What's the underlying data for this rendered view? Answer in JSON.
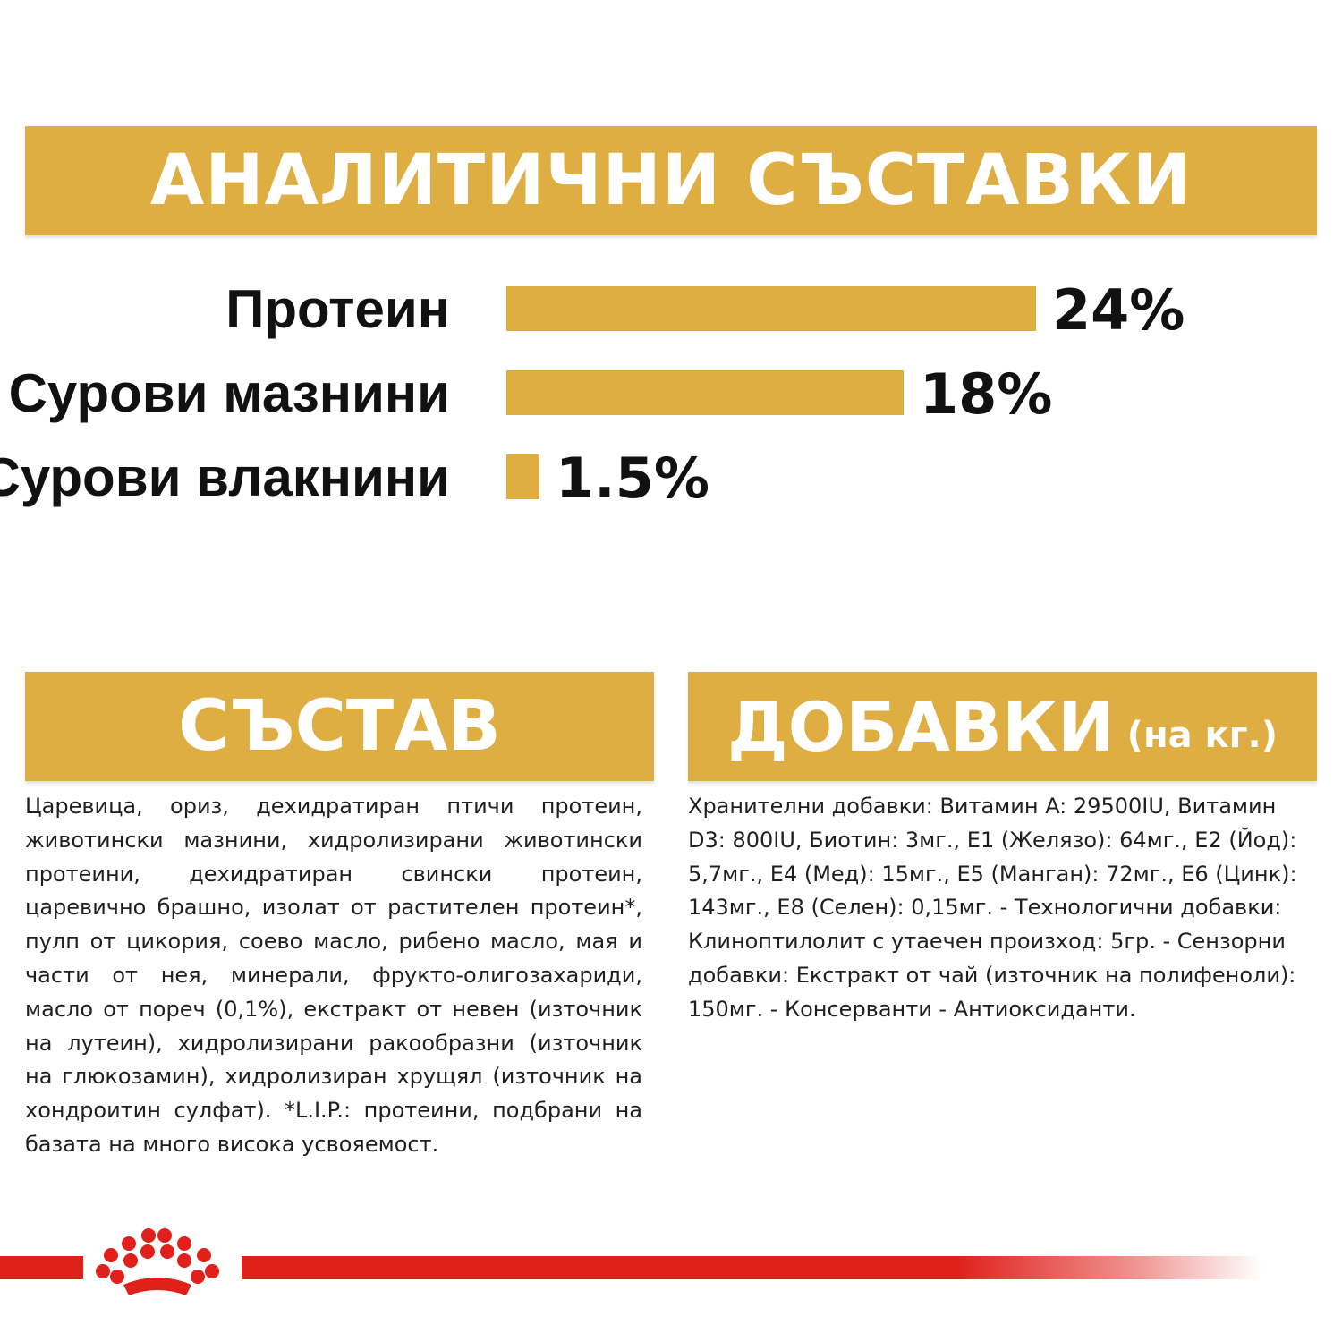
{
  "banners": {
    "analytical": "АНАЛИТИЧНИ СЪСТАВКИ",
    "composition": "СЪСТАВ",
    "additives": "ДОБАВКИ",
    "additives_unit": "(на кг.)"
  },
  "chart_data": {
    "type": "bar",
    "orientation": "horizontal",
    "categories": [
      "Протеин",
      "Сурови мазнини",
      "Сурови влакнини"
    ],
    "values": [
      24,
      18,
      1.5
    ],
    "value_labels": [
      "24%",
      "18%",
      "1.5%"
    ],
    "unit": "%",
    "xlim": [
      0,
      24
    ],
    "grid": false,
    "bar_color": "#dfae42"
  },
  "composition_text": "Царевица, ориз, дехидратиран птичи протеин, животински мазнини, хидролизирани животински протеини, дехидратиран свински протеин, царевично брашно, изолат от растителен протеин*, пулп от цикория, соево масло, рибено масло, мая и части от нея, минерали, фрукто-олигозахариди, масло от пореч (0,1%), екстракт от невен (източник на лутеин), хидролизирани ракообразни (източник на глюкозамин), хидролизиран хрущял (източник на хондроитин сулфат). *L.I.P.: протеини, подбрани на базата на много висока усвояемост.",
  "additives_text": "Хранителни добавки: Витамин A: 29500IU, Витамин D3: 800IU, Биотин: 3мг., E1 (Желязо): 64мг., E2 (Йод): 5,7мг., E4 (Мед): 15мг., E5 (Манган): 72мг., E6 (Цинк): 143мг., E8 (Селен): 0,15мг. - Технологични добавки: Клиноптилолит с утаечен произход: 5гр. - Сензорни добавки: Екстракт от чай (източник на полифеноли): 150мг. - Консерванти - Антиоксиданти.",
  "colors": {
    "gold": "#dfae42",
    "brand_red": "#e0201b",
    "text": "#111111"
  },
  "logo": {
    "icon": "royal-canin-crown-icon"
  }
}
